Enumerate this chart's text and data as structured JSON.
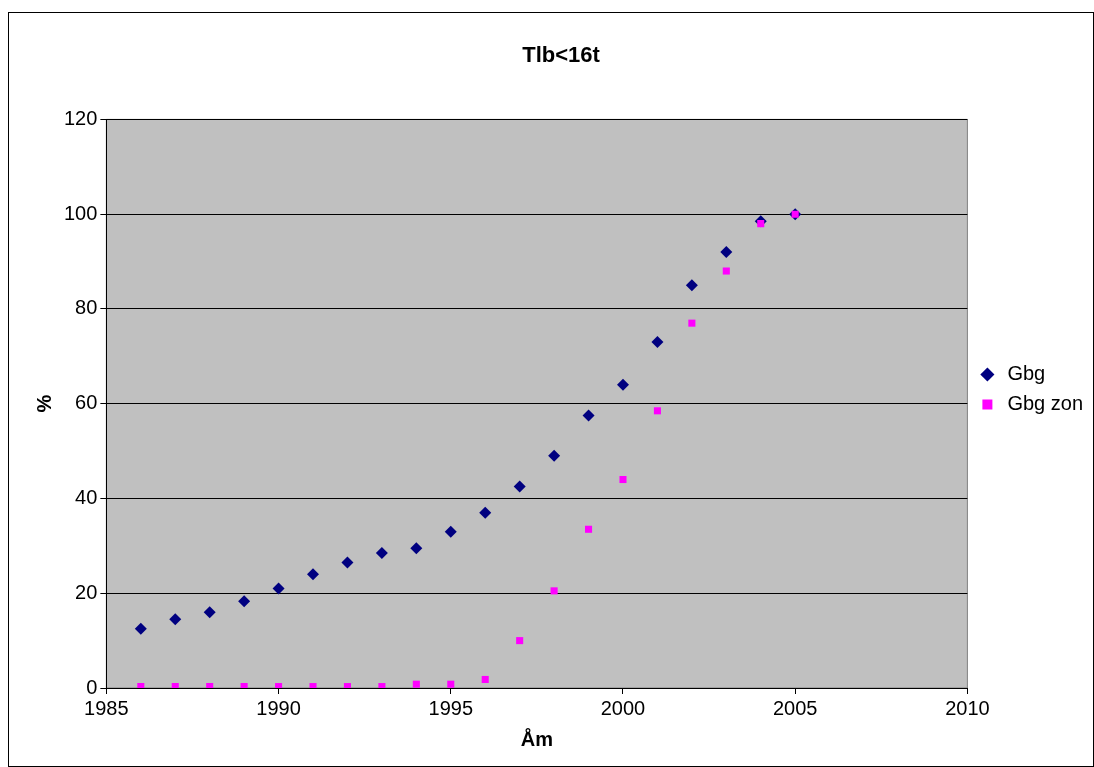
{
  "chart_data": {
    "type": "scatter",
    "title": "Tlb<16t",
    "xlabel": "Åm",
    "ylabel": "%",
    "x": [
      1986,
      1987,
      1988,
      1989,
      1990,
      1991,
      1992,
      1993,
      1994,
      1995,
      1996,
      1997,
      1998,
      1999,
      2000,
      2001,
      2002,
      2003,
      2004,
      2005
    ],
    "series": [
      {
        "name": "Gbg",
        "color": "#000080",
        "marker": "diamond",
        "values": [
          12.5,
          14.5,
          16,
          18.3,
          21,
          24,
          26.5,
          28.5,
          29.5,
          33,
          37,
          42.5,
          49,
          57.5,
          64,
          73,
          85,
          92,
          98.5,
          100
        ]
      },
      {
        "name": "Gbg zon",
        "color": "#ff00ff",
        "marker": "square",
        "values": [
          0.3,
          0.3,
          0.3,
          0.3,
          0.3,
          0.3,
          0.3,
          0.3,
          0.8,
          0.8,
          1.8,
          10,
          20.5,
          33.5,
          44,
          58.5,
          77,
          88,
          98,
          100
        ]
      }
    ],
    "xlim": [
      1985,
      2010
    ],
    "xticks": [
      1985,
      1990,
      1995,
      2000,
      2005,
      2010
    ],
    "ylim": [
      0,
      120
    ],
    "yticks": [
      0,
      20,
      40,
      60,
      80,
      100,
      120
    ],
    "grid": "y",
    "legend": "right"
  }
}
